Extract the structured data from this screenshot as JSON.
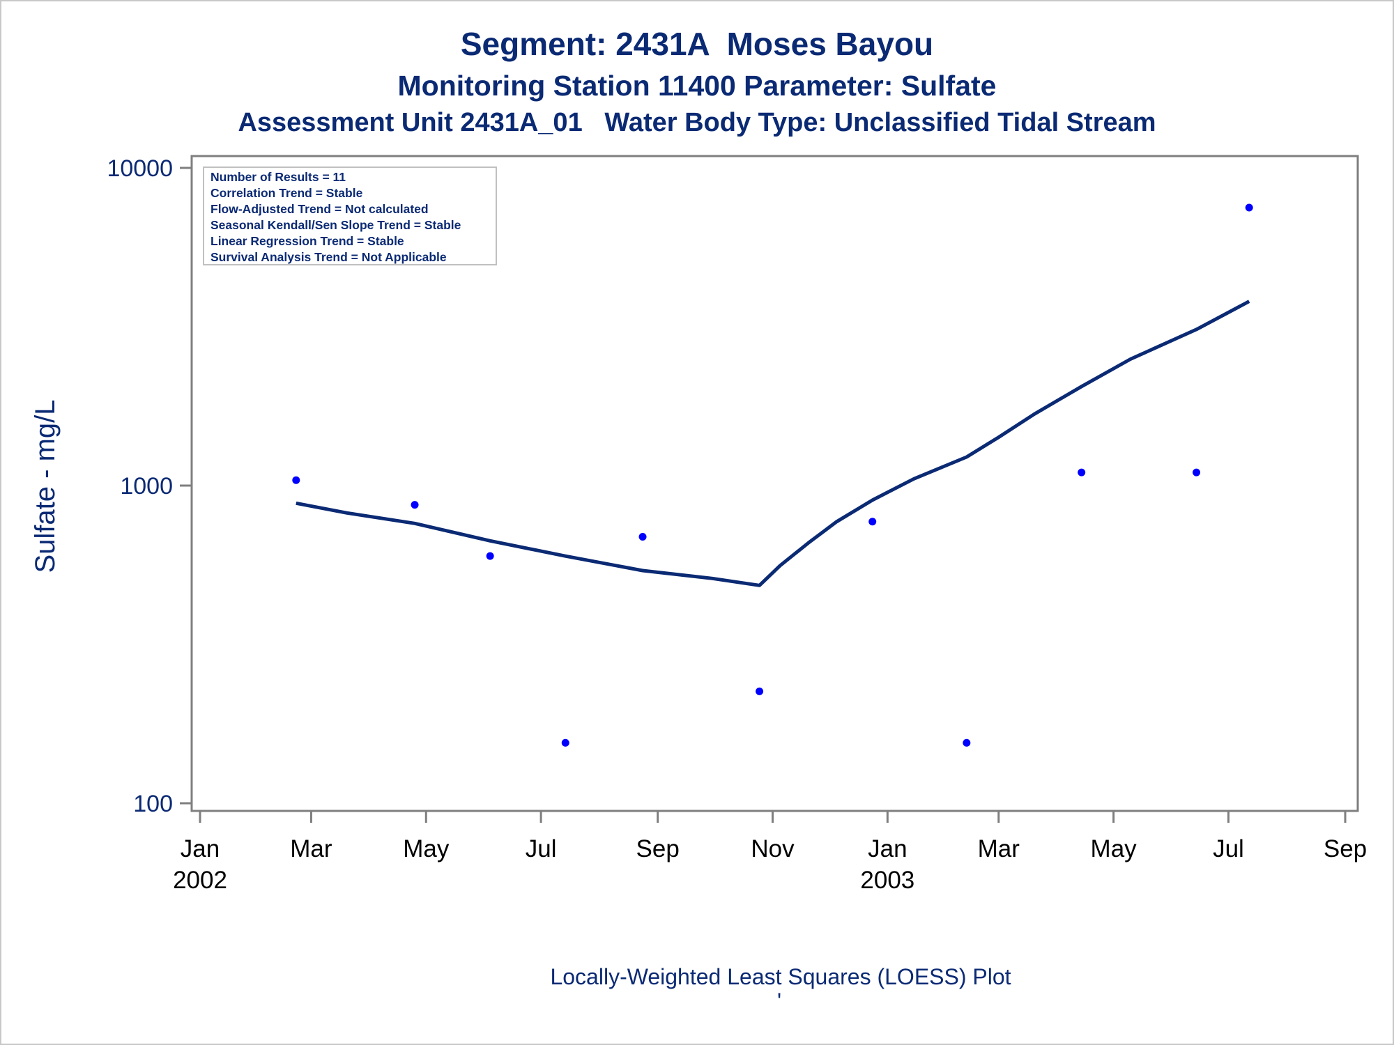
{
  "titles": {
    "line1": "Segment: 2431A  Moses Bayou",
    "line2": "Monitoring Station 11400 Parameter: Sulfate",
    "line3": "Assessment Unit 2431A_01   Water Body Type: Unclassified Tidal Stream"
  },
  "stats_box": [
    "Number of Results = 11",
    "Correlation Trend = Stable",
    "Flow-Adjusted Trend = Not calculated",
    "Seasonal Kendall/Sen Slope Trend = Stable",
    "Linear Regression Trend = Stable",
    "Survival Analysis Trend = Not Applicable"
  ],
  "footnote": "Locally-Weighted Least Squares (LOESS) Plot",
  "footnote_mark": "'",
  "colors": {
    "title": "#0b2a74",
    "points": "#0000ff",
    "loess_line": "#0b2a74",
    "axis": "#7f7f7f"
  },
  "chart_data": {
    "type": "scatter",
    "ylabel": "Sulfate - mg/L",
    "yscale": "log",
    "ylim": [
      100,
      10000
    ],
    "yticks": [
      {
        "value": 100,
        "label": "100"
      },
      {
        "value": 1000,
        "label": "1000"
      },
      {
        "value": 10000,
        "label": "10000"
      }
    ],
    "xlim": [
      "2002-01-01",
      "2003-09-01"
    ],
    "xticks": [
      {
        "date": "2002-01-01",
        "label": "Jan",
        "year": "2002"
      },
      {
        "date": "2002-03-01",
        "label": "Mar",
        "year": ""
      },
      {
        "date": "2002-05-01",
        "label": "May",
        "year": ""
      },
      {
        "date": "2002-07-01",
        "label": "Jul",
        "year": ""
      },
      {
        "date": "2002-09-01",
        "label": "Sep",
        "year": ""
      },
      {
        "date": "2002-11-01",
        "label": "Nov",
        "year": ""
      },
      {
        "date": "2003-01-01",
        "label": "Jan",
        "year": "2003"
      },
      {
        "date": "2003-03-01",
        "label": "Mar",
        "year": ""
      },
      {
        "date": "2003-05-01",
        "label": "May",
        "year": ""
      },
      {
        "date": "2003-07-01",
        "label": "Jul",
        "year": ""
      },
      {
        "date": "2003-09-01",
        "label": "Sep",
        "year": ""
      }
    ],
    "points": [
      {
        "date": "2002-02-21",
        "value": 1040
      },
      {
        "date": "2002-04-25",
        "value": 870
      },
      {
        "date": "2002-06-04",
        "value": 600
      },
      {
        "date": "2002-07-14",
        "value": 155
      },
      {
        "date": "2002-08-24",
        "value": 690
      },
      {
        "date": "2002-10-25",
        "value": 225
      },
      {
        "date": "2002-12-24",
        "value": 770
      },
      {
        "date": "2003-02-12",
        "value": 155
      },
      {
        "date": "2003-04-14",
        "value": 1100
      },
      {
        "date": "2003-06-14",
        "value": 1100
      },
      {
        "date": "2003-07-12",
        "value": 7500
      }
    ],
    "loess_line": [
      {
        "date": "2002-02-21",
        "value": 880
      },
      {
        "date": "2002-03-20",
        "value": 820
      },
      {
        "date": "2002-04-25",
        "value": 760
      },
      {
        "date": "2002-06-04",
        "value": 670
      },
      {
        "date": "2002-07-14",
        "value": 600
      },
      {
        "date": "2002-08-24",
        "value": 540
      },
      {
        "date": "2002-09-30",
        "value": 510
      },
      {
        "date": "2002-10-25",
        "value": 485
      },
      {
        "date": "2002-11-05",
        "value": 560
      },
      {
        "date": "2002-11-20",
        "value": 660
      },
      {
        "date": "2002-12-05",
        "value": 770
      },
      {
        "date": "2002-12-24",
        "value": 900
      },
      {
        "date": "2003-01-15",
        "value": 1050
      },
      {
        "date": "2003-02-12",
        "value": 1230
      },
      {
        "date": "2003-03-01",
        "value": 1420
      },
      {
        "date": "2003-03-20",
        "value": 1680
      },
      {
        "date": "2003-04-14",
        "value": 2050
      },
      {
        "date": "2003-05-10",
        "value": 2500
      },
      {
        "date": "2003-06-14",
        "value": 3100
      },
      {
        "date": "2003-07-12",
        "value": 3800
      }
    ]
  }
}
